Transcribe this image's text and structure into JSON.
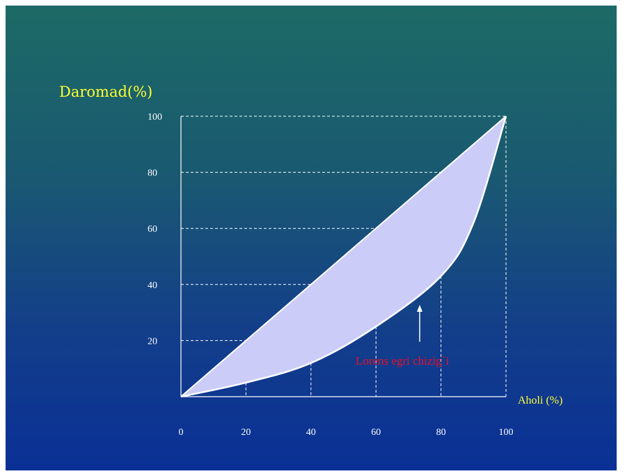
{
  "chart_data": {
    "type": "area",
    "ylabel": "Daromad(%)",
    "xlabel": "Aholi (%)",
    "xlim": [
      0,
      100
    ],
    "ylim": [
      0,
      100
    ],
    "x_ticks": [
      "0",
      "20",
      "40",
      "60",
      "80",
      "100"
    ],
    "y_ticks": [
      "20",
      "40",
      "60",
      "80",
      "100"
    ],
    "series": [
      {
        "x": [
          0,
          20,
          40,
          60,
          80,
          100
        ],
        "y": [
          0,
          20,
          40,
          60,
          80,
          100
        ]
      },
      {
        "x": [
          0,
          20,
          40,
          60,
          80,
          90,
          100
        ],
        "y": [
          0,
          5,
          12,
          25,
          43,
          62,
          100
        ]
      }
    ],
    "annotation": "Lorens egri chizig`i",
    "colors": {
      "fill": "#ccccf8",
      "curve": "#ffffff",
      "axis_text": "#ffffff",
      "title_text": "#ffff33",
      "annotation_text": "#e8102a"
    },
    "grid": "dashed reference lines"
  }
}
